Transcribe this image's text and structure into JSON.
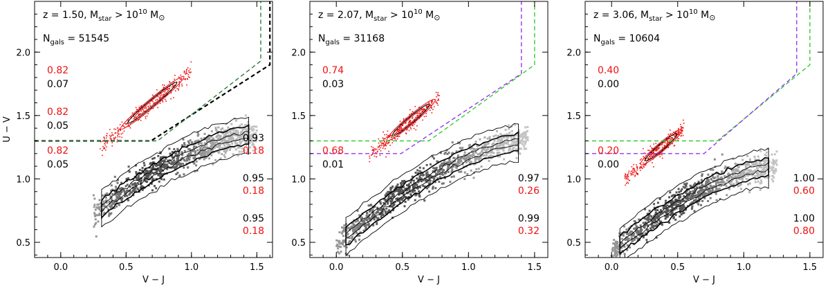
{
  "chart_data": [
    {
      "type": "scatter",
      "panel": 1,
      "xlabel": "V − J",
      "ylabel": "U − V",
      "xlim": [
        -0.2,
        1.62
      ],
      "ylim": [
        0.38,
        2.4
      ],
      "xticks": [
        "0.0",
        "0.5",
        "1.0",
        "1.5"
      ],
      "yticks": [
        "0.5",
        "1.0",
        "1.5",
        "2.0"
      ],
      "annotation_line1": "z = 1.50, M",
      "annotation_line1_sub": "star",
      "annotation_line1_rest": " > 10",
      "annotation_line1_sup": "10",
      "annotation_line1_end": " M",
      "annotation_line1_sun": "⊙",
      "annotation_line2": "N",
      "annotation_line2_sub": "gals",
      "annotation_line2_rest": " = 51545",
      "left_fractions": [
        {
          "red": "0.82",
          "black": "0.07"
        },
        {
          "red": "0.82",
          "black": "0.05"
        },
        {
          "red": "0.82",
          "black": "0.05"
        }
      ],
      "right_fractions": [
        {
          "black": "0.93",
          "red": "0.18"
        },
        {
          "black": "0.95",
          "red": "0.18"
        },
        {
          "black": "0.95",
          "red": "0.18"
        }
      ],
      "selection_boxes": [
        {
          "color": "#000000",
          "points": [
            [
              -0.2,
              1.3
            ],
            [
              0.69,
              1.3
            ],
            [
              1.6,
              1.9
            ],
            [
              1.6,
              2.4
            ]
          ]
        },
        {
          "color": "#2a7a3a",
          "points": [
            [
              -0.2,
              1.3
            ],
            [
              0.74,
              1.3
            ],
            [
              1.53,
              1.93
            ],
            [
              1.53,
              2.4
            ]
          ]
        }
      ],
      "quiescent_sequence": {
        "x_range": [
          0.3,
          1.0
        ],
        "y_range": [
          1.25,
          1.85
        ]
      },
      "star_forming_sequence": {
        "x_range": [
          0.25,
          1.5
        ],
        "y_range": [
          0.72,
          1.35
        ]
      }
    },
    {
      "type": "scatter",
      "panel": 2,
      "xlabel": "V − J",
      "ylabel": "",
      "xlim": [
        -0.2,
        1.6
      ],
      "ylim": [
        0.38,
        2.4
      ],
      "xticks": [
        "0.0",
        "0.5",
        "1.0",
        "1.5"
      ],
      "yticks": [
        "0.5",
        "1.0",
        "1.5",
        "2.0"
      ],
      "annotation_line1": "z = 2.07, M",
      "annotation_line1_sub": "star",
      "annotation_line1_rest": " > 10",
      "annotation_line1_sup": "10",
      "annotation_line1_end": " M",
      "annotation_line1_sun": "⊙",
      "annotation_line2": "N",
      "annotation_line2_sub": "gals",
      "annotation_line2_rest": " = 31168",
      "left_fractions": [
        {
          "red": "0.74",
          "black": "0.03"
        },
        {
          "red": "0.68",
          "black": "0.01"
        }
      ],
      "right_fractions": [
        {
          "black": "0.97",
          "red": "0.26"
        },
        {
          "black": "0.99",
          "red": "0.32"
        }
      ],
      "selection_boxes": [
        {
          "color": "#33cc33",
          "points": [
            [
              -0.2,
              1.3
            ],
            [
              0.7,
              1.3
            ],
            [
              1.5,
              1.9
            ],
            [
              1.5,
              2.4
            ]
          ]
        },
        {
          "color": "#9933ee",
          "points": [
            [
              -0.2,
              1.2
            ],
            [
              0.49,
              1.2
            ],
            [
              1.4,
              1.83
            ],
            [
              1.4,
              2.4
            ]
          ]
        }
      ],
      "quiescent_sequence": {
        "x_range": [
          0.25,
          0.78
        ],
        "y_range": [
          1.18,
          1.65
        ]
      },
      "star_forming_sequence": {
        "x_range": [
          0.0,
          1.45
        ],
        "y_range": [
          0.48,
          1.3
        ]
      }
    },
    {
      "type": "scatter",
      "panel": 3,
      "xlabel": "V − J",
      "ylabel": "",
      "xlim": [
        -0.2,
        1.6
      ],
      "ylim": [
        0.38,
        2.4
      ],
      "xticks": [
        "0.0",
        "0.5",
        "1.0",
        "1.5"
      ],
      "yticks": [
        "0.5",
        "1.0",
        "1.5",
        "2.0"
      ],
      "annotation_line1": "z = 3.06, M",
      "annotation_line1_sub": "star",
      "annotation_line1_rest": " > 10",
      "annotation_line1_sup": "10",
      "annotation_line1_end": " M",
      "annotation_line1_sun": "⊙",
      "annotation_line2": "N",
      "annotation_line2_sub": "gals",
      "annotation_line2_rest": " = 10604",
      "left_fractions": [
        {
          "red": "0.40",
          "black": "0.00"
        },
        {
          "red": "0.20",
          "black": "0.00"
        }
      ],
      "right_fractions": [
        {
          "black": "1.00",
          "red": "0.60"
        },
        {
          "black": "1.00",
          "red": "0.80"
        }
      ],
      "selection_boxes": [
        {
          "color": "#33cc33",
          "points": [
            [
              -0.2,
              1.3
            ],
            [
              0.8,
              1.3
            ],
            [
              1.5,
              1.9
            ],
            [
              1.5,
              2.4
            ]
          ]
        },
        {
          "color": "#9933ee",
          "points": [
            [
              -0.2,
              1.2
            ],
            [
              0.7,
              1.2
            ],
            [
              1.4,
              1.83
            ],
            [
              1.4,
              2.4
            ]
          ]
        }
      ],
      "quiescent_sequence": {
        "x_range": [
          0.1,
          0.55
        ],
        "y_range": [
          1.0,
          1.4
        ]
      },
      "star_forming_sequence": {
        "x_range": [
          0.0,
          1.25
        ],
        "y_range": [
          0.42,
          1.1
        ]
      }
    }
  ],
  "colors": {
    "red": "#ee1111",
    "black": "#000000",
    "grey_density": "#9a9a9a"
  }
}
